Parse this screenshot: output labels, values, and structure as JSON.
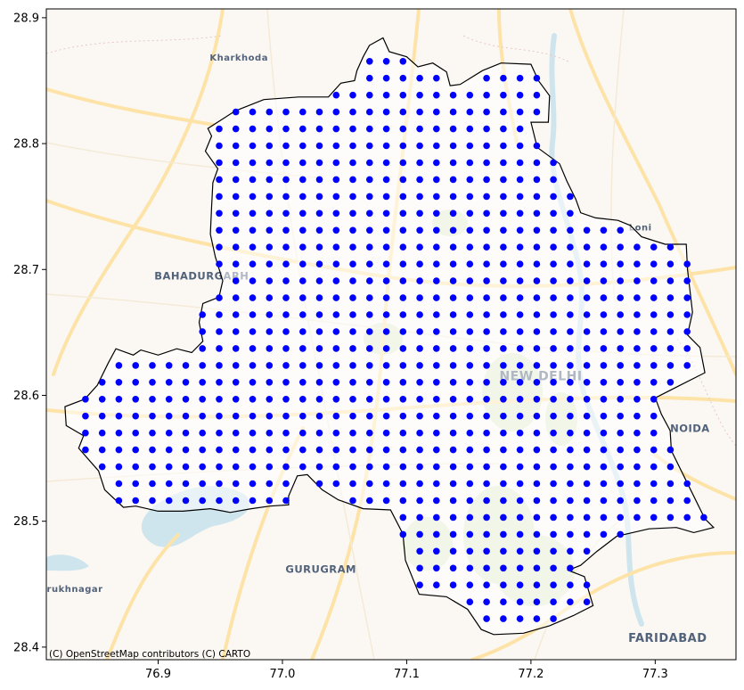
{
  "map": {
    "attribution": "(C) OpenStreetMap contributors (C) CARTO",
    "place_labels": [
      {
        "name": "Kharkhoda",
        "lon": 76.965,
        "lat": 28.866,
        "size": 10
      },
      {
        "name": "BAHADURGARH",
        "lon": 76.935,
        "lat": 28.692,
        "size": 11.5
      },
      {
        "name": "Loni",
        "lon": 77.288,
        "lat": 28.731,
        "size": 10
      },
      {
        "name": "NEW DELHI",
        "lon": 77.208,
        "lat": 28.612,
        "size": 14
      },
      {
        "name": "NOIDA",
        "lon": 77.328,
        "lat": 28.571,
        "size": 11.5
      },
      {
        "name": "GURUGRAM",
        "lon": 77.031,
        "lat": 28.459,
        "size": 11.5
      },
      {
        "name": "rukhnagar",
        "lon": 76.833,
        "lat": 28.444,
        "size": 10
      },
      {
        "name": "FARIDABAD",
        "lon": 77.31,
        "lat": 28.404,
        "size": 13
      }
    ],
    "colors": {
      "point": "#0000ff",
      "boundary": "#000000",
      "basemap": "#fbf8f3",
      "road": "#fde2a2",
      "park": "#d9e8c4",
      "water": "#c7e4ee"
    }
  },
  "chart_data": {
    "type": "scatter",
    "title": "",
    "xlabel": "",
    "ylabel": "",
    "xlim": [
      76.81,
      77.365
    ],
    "ylim": [
      28.39,
      28.907
    ],
    "xticks": [
      "76.9",
      "77.0",
      "77.1",
      "77.2",
      "77.3"
    ],
    "xtick_values": [
      76.9,
      77.0,
      77.1,
      77.2,
      77.3
    ],
    "yticks": [
      "28.4",
      "28.5",
      "28.6",
      "28.7",
      "28.8",
      "28.9"
    ],
    "ytick_values": [
      28.4,
      28.5,
      28.6,
      28.7,
      28.8,
      28.9
    ],
    "grid": {
      "lon_start": 76.8415,
      "lon_step": 0.01345,
      "lat_start": 28.4225,
      "lat_step": 0.01342,
      "rows": 34,
      "cols": 38
    },
    "boundary": [
      [
        77.081,
        28.884
      ],
      [
        77.086,
        28.873
      ],
      [
        77.1,
        28.869
      ],
      [
        77.109,
        28.861
      ],
      [
        77.121,
        28.864
      ],
      [
        77.132,
        28.857
      ],
      [
        77.135,
        28.846
      ],
      [
        77.143,
        28.847
      ],
      [
        77.161,
        28.858
      ],
      [
        77.176,
        28.864
      ],
      [
        77.2,
        28.863
      ],
      [
        77.206,
        28.85
      ],
      [
        77.215,
        28.838
      ],
      [
        77.214,
        28.817
      ],
      [
        77.2,
        28.817
      ],
      [
        77.205,
        28.797
      ],
      [
        77.223,
        28.784
      ],
      [
        77.229,
        28.77
      ],
      [
        77.236,
        28.756
      ],
      [
        77.24,
        28.745
      ],
      [
        77.252,
        28.741
      ],
      [
        77.27,
        28.739
      ],
      [
        77.28,
        28.735
      ],
      [
        77.289,
        28.726
      ],
      [
        77.308,
        28.72
      ],
      [
        77.325,
        28.72
      ],
      [
        77.326,
        28.7
      ],
      [
        77.33,
        28.666
      ],
      [
        77.326,
        28.648
      ],
      [
        77.336,
        28.638
      ],
      [
        77.34,
        28.618
      ],
      [
        77.32,
        28.608
      ],
      [
        77.3,
        28.598
      ],
      [
        77.305,
        28.585
      ],
      [
        77.312,
        28.572
      ],
      [
        77.313,
        28.556
      ],
      [
        77.323,
        28.536
      ],
      [
        77.34,
        28.502
      ],
      [
        77.347,
        28.495
      ],
      [
        77.331,
        28.491
      ],
      [
        77.317,
        28.495
      ],
      [
        77.295,
        28.494
      ],
      [
        77.269,
        28.488
      ],
      [
        77.253,
        28.476
      ],
      [
        77.24,
        28.465
      ],
      [
        77.23,
        28.461
      ],
      [
        77.243,
        28.456
      ],
      [
        77.25,
        28.433
      ],
      [
        77.234,
        28.425
      ],
      [
        77.215,
        28.417
      ],
      [
        77.194,
        28.411
      ],
      [
        77.17,
        28.41
      ],
      [
        77.16,
        28.414
      ],
      [
        77.149,
        28.43
      ],
      [
        77.132,
        28.44
      ],
      [
        77.11,
        28.442
      ],
      [
        77.099,
        28.469
      ],
      [
        77.097,
        28.49
      ],
      [
        77.087,
        28.509
      ],
      [
        77.065,
        28.51
      ],
      [
        77.045,
        28.517
      ],
      [
        77.032,
        28.525
      ],
      [
        77.02,
        28.537
      ],
      [
        77.012,
        28.536
      ],
      [
        77.005,
        28.52
      ],
      [
        77.005,
        28.513
      ],
      [
        76.99,
        28.512
      ],
      [
        76.975,
        28.51
      ],
      [
        76.958,
        28.507
      ],
      [
        76.942,
        28.51
      ],
      [
        76.92,
        28.508
      ],
      [
        76.9,
        28.508
      ],
      [
        76.882,
        28.512
      ],
      [
        76.872,
        28.511
      ],
      [
        76.857,
        28.525
      ],
      [
        76.852,
        28.54
      ],
      [
        76.836,
        28.558
      ],
      [
        76.84,
        28.568
      ],
      [
        76.826,
        28.576
      ],
      [
        76.825,
        28.591
      ],
      [
        76.841,
        28.597
      ],
      [
        76.851,
        28.608
      ],
      [
        76.86,
        28.626
      ],
      [
        76.866,
        28.637
      ],
      [
        76.88,
        28.632
      ],
      [
        76.886,
        28.636
      ],
      [
        76.9,
        28.632
      ],
      [
        76.915,
        28.637
      ],
      [
        76.927,
        28.634
      ],
      [
        76.936,
        28.643
      ],
      [
        76.933,
        28.658
      ],
      [
        76.936,
        28.673
      ],
      [
        76.949,
        28.678
      ],
      [
        76.952,
        28.691
      ],
      [
        76.946,
        28.71
      ],
      [
        76.942,
        28.728
      ],
      [
        76.943,
        28.75
      ],
      [
        76.944,
        28.769
      ],
      [
        76.948,
        28.78
      ],
      [
        76.938,
        28.794
      ],
      [
        76.943,
        28.806
      ],
      [
        76.94,
        28.812
      ],
      [
        76.962,
        28.826
      ],
      [
        76.985,
        28.835
      ],
      [
        77.013,
        28.837
      ],
      [
        77.037,
        28.837
      ],
      [
        77.047,
        28.848
      ],
      [
        77.058,
        28.85
      ],
      [
        77.06,
        28.858
      ],
      [
        77.065,
        28.869
      ],
      [
        77.07,
        28.878
      ],
      [
        77.081,
        28.884
      ]
    ]
  }
}
